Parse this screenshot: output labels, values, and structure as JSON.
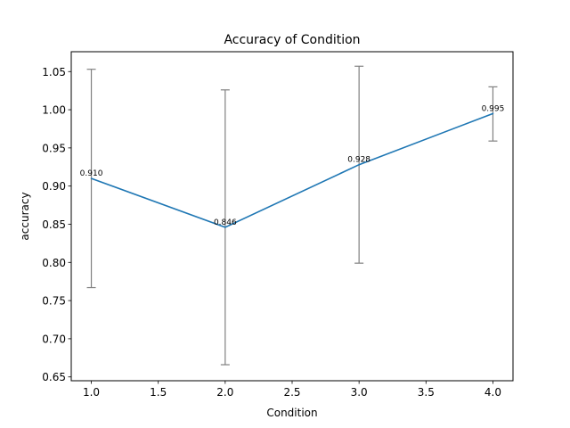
{
  "chart_data": {
    "type": "line",
    "title": "Accuracy of Condition",
    "xlabel": "Condition",
    "ylabel": "accuracy",
    "xlim": [
      0.85,
      4.15
    ],
    "ylim": [
      0.645,
      1.076
    ],
    "xticks": [
      1.0,
      1.5,
      2.0,
      2.5,
      3.0,
      3.5,
      4.0
    ],
    "xtick_labels": [
      "1.0",
      "1.5",
      "2.0",
      "2.5",
      "3.0",
      "3.5",
      "4.0"
    ],
    "yticks": [
      0.65,
      0.7,
      0.75,
      0.8,
      0.85,
      0.9,
      0.95,
      1.0,
      1.05
    ],
    "ytick_labels": [
      "0.65",
      "0.70",
      "0.75",
      "0.80",
      "0.85",
      "0.90",
      "0.95",
      "1.00",
      "1.05"
    ],
    "grid": false,
    "series": [
      {
        "color": "#1f77b4",
        "x": [
          1.0,
          2.0,
          3.0,
          4.0
        ],
        "y": [
          0.91,
          0.846,
          0.928,
          0.995
        ],
        "labels": [
          "0.910",
          "0.846",
          "0.928",
          "0.995"
        ],
        "err_lower": [
          0.767,
          0.666,
          0.799,
          0.959
        ],
        "err_upper": [
          1.053,
          1.026,
          1.057,
          1.03
        ],
        "err_color": "#808080"
      }
    ]
  }
}
